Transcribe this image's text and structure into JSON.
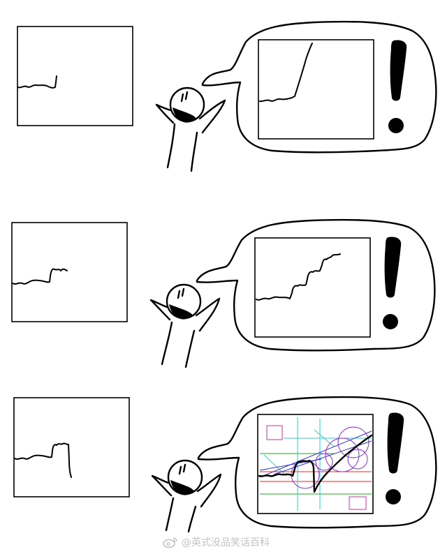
{
  "panels": [
    {
      "row": 1,
      "small_chart": "short-flat-line-with-uptick",
      "bubble_chart": "sharp-spike-up"
    },
    {
      "row": 2,
      "small_chart": "line-with-step-up",
      "bubble_chart": "steady-staircase-rise"
    },
    {
      "row": 3,
      "small_chart": "line-with-step-up-then-drop",
      "bubble_chart": "technical-analysis-overlay"
    }
  ],
  "colors": {
    "ink": "#000000",
    "background": "#ffffff",
    "overlay_magenta": "#cc3399",
    "overlay_purple": "#8a2be2",
    "overlay_cyan": "#33cccc",
    "overlay_red": "#e03030",
    "overlay_green": "#22aa22",
    "overlay_blue": "#3333cc",
    "watermark": "#777777"
  },
  "icons": [
    "weibo-icon",
    "exclamation-mark-icon",
    "stick-figure-icon"
  ],
  "watermark": {
    "text": "@英式没品笑话百科"
  }
}
